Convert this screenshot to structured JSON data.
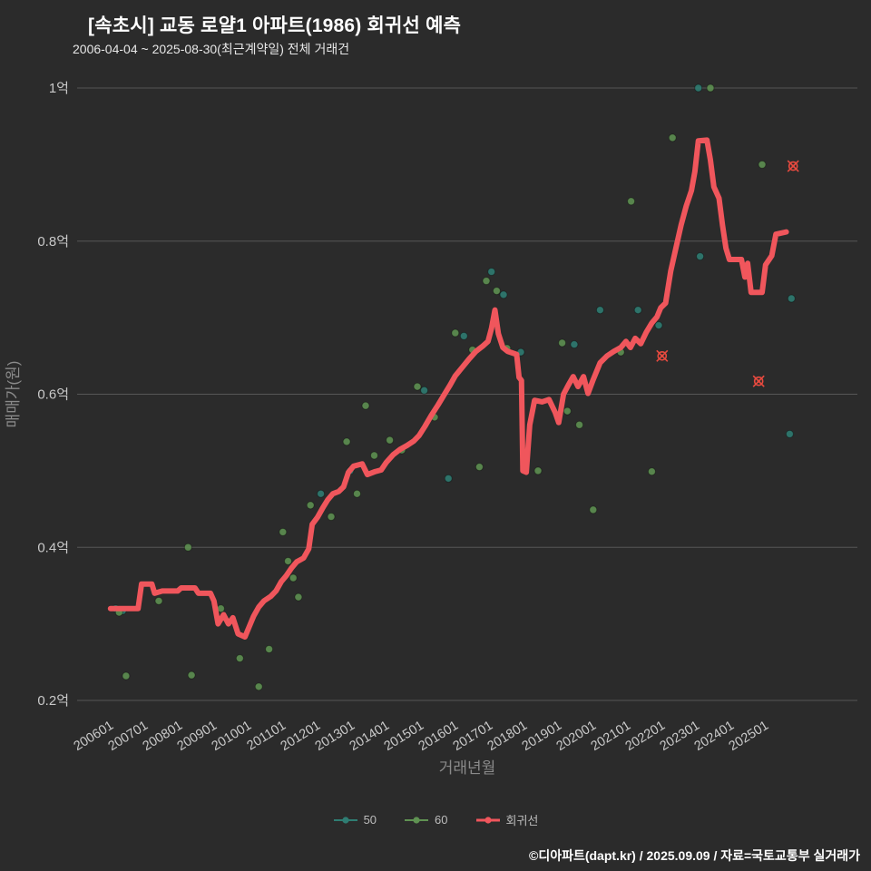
{
  "page": {
    "title": "[속초시] 교동 로얄1 아파트(1986) 회귀선 예측",
    "subtitle": "2006-04-04 ~ 2025-08-30(최근계약일) 전체 거래건",
    "footer": "©디아파트(dapt.kr) / 2025.09.09 / 자료=국토교통부 실거래가"
  },
  "colors": {
    "background": "#2b2b2b",
    "grid": "#565656",
    "tick_text": "#c9c9c9",
    "axis_title_text": "#8a8a8a",
    "series_50": "#2f7d73",
    "series_60": "#5f9252",
    "regression": "#f0565c",
    "outlier": "#e84a3f"
  },
  "legend": {
    "items": [
      {
        "label": "50",
        "color": "#2f7d73",
        "type": "scatter"
      },
      {
        "label": "60",
        "color": "#5f9252",
        "type": "scatter"
      },
      {
        "label": "회귀선",
        "color": "#f0565c",
        "type": "line"
      }
    ]
  },
  "chart_data": {
    "type": "scatter",
    "title": "[속초시] 교동 로얄1 아파트(1986) 회귀선 예측",
    "subtitle": "2006-04-04 ~ 2025-08-30(최근계약일) 전체 거래건",
    "xlabel": "거래년월",
    "ylabel": "매매가(원)",
    "unit": "억원",
    "grid": true,
    "legend_position": "bottom-center",
    "xlim": [
      2005.6,
      2026.4
    ],
    "ylim": [
      0.18,
      1.05
    ],
    "x_ticks": [
      "200601",
      "200701",
      "200801",
      "200901",
      "201001",
      "201101",
      "201201",
      "201301",
      "201401",
      "201501",
      "201601",
      "201701",
      "201801",
      "201901",
      "202001",
      "202101",
      "202201",
      "202301",
      "202401",
      "202501"
    ],
    "y_ticks": {
      "values": [
        0.2,
        0.4,
        0.6,
        0.8,
        1.0
      ],
      "labels": [
        "0.2억",
        "0.4억",
        "0.6억",
        "0.8억",
        "1억"
      ]
    },
    "series": [
      {
        "name": "50",
        "type": "scatter",
        "color": "#2f7d73",
        "points": [
          [
            2006.25,
            0.32
          ],
          [
            2006.45,
            0.317
          ],
          [
            2012.2,
            0.47
          ],
          [
            2013.05,
            0.5
          ],
          [
            2015.2,
            0.605
          ],
          [
            2015.9,
            0.49
          ],
          [
            2016.35,
            0.676
          ],
          [
            2017.15,
            0.76
          ],
          [
            2017.5,
            0.73
          ],
          [
            2018.0,
            0.655
          ],
          [
            2019.55,
            0.665
          ],
          [
            2020.3,
            0.71
          ],
          [
            2021.4,
            0.71
          ],
          [
            2022.0,
            0.69
          ],
          [
            2023.15,
            1.0
          ],
          [
            2023.2,
            0.78
          ],
          [
            2025.8,
            0.548
          ],
          [
            2025.85,
            0.725
          ]
        ]
      },
      {
        "name": "60",
        "type": "scatter",
        "color": "#5f9252",
        "points": [
          [
            2006.35,
            0.315
          ],
          [
            2006.55,
            0.232
          ],
          [
            2007.5,
            0.33
          ],
          [
            2008.35,
            0.4
          ],
          [
            2008.45,
            0.233
          ],
          [
            2009.3,
            0.32
          ],
          [
            2009.85,
            0.255
          ],
          [
            2010.4,
            0.218
          ],
          [
            2010.7,
            0.267
          ],
          [
            2011.1,
            0.42
          ],
          [
            2011.25,
            0.382
          ],
          [
            2011.4,
            0.36
          ],
          [
            2011.55,
            0.335
          ],
          [
            2011.9,
            0.455
          ],
          [
            2012.5,
            0.44
          ],
          [
            2012.95,
            0.538
          ],
          [
            2013.25,
            0.47
          ],
          [
            2013.5,
            0.585
          ],
          [
            2013.75,
            0.52
          ],
          [
            2014.2,
            0.54
          ],
          [
            2014.55,
            0.527
          ],
          [
            2015.0,
            0.61
          ],
          [
            2015.5,
            0.57
          ],
          [
            2016.1,
            0.68
          ],
          [
            2016.6,
            0.658
          ],
          [
            2016.8,
            0.505
          ],
          [
            2017.0,
            0.748
          ],
          [
            2017.3,
            0.735
          ],
          [
            2017.6,
            0.66
          ],
          [
            2018.5,
            0.5
          ],
          [
            2019.2,
            0.667
          ],
          [
            2019.35,
            0.578
          ],
          [
            2019.7,
            0.56
          ],
          [
            2020.1,
            0.449
          ],
          [
            2020.9,
            0.655
          ],
          [
            2021.2,
            0.852
          ],
          [
            2021.8,
            0.499
          ],
          [
            2022.4,
            0.935
          ],
          [
            2023.5,
            1.0
          ],
          [
            2025.0,
            0.9
          ]
        ]
      },
      {
        "name": "회귀선",
        "type": "line",
        "color": "#f0565c",
        "width": 6,
        "points": [
          [
            2006.1,
            0.32
          ],
          [
            2006.9,
            0.32
          ],
          [
            2007.0,
            0.352
          ],
          [
            2007.3,
            0.352
          ],
          [
            2007.38,
            0.34
          ],
          [
            2007.6,
            0.343
          ],
          [
            2008.05,
            0.343
          ],
          [
            2008.15,
            0.347
          ],
          [
            2008.55,
            0.347
          ],
          [
            2008.65,
            0.34
          ],
          [
            2009.0,
            0.34
          ],
          [
            2009.1,
            0.33
          ],
          [
            2009.22,
            0.3
          ],
          [
            2009.38,
            0.312
          ],
          [
            2009.52,
            0.3
          ],
          [
            2009.65,
            0.308
          ],
          [
            2009.8,
            0.287
          ],
          [
            2010.0,
            0.283
          ],
          [
            2010.12,
            0.296
          ],
          [
            2010.25,
            0.31
          ],
          [
            2010.4,
            0.322
          ],
          [
            2010.55,
            0.33
          ],
          [
            2010.75,
            0.336
          ],
          [
            2010.9,
            0.343
          ],
          [
            2011.05,
            0.355
          ],
          [
            2011.2,
            0.363
          ],
          [
            2011.35,
            0.373
          ],
          [
            2011.5,
            0.381
          ],
          [
            2011.7,
            0.386
          ],
          [
            2011.85,
            0.398
          ],
          [
            2011.95,
            0.43
          ],
          [
            2012.1,
            0.439
          ],
          [
            2012.25,
            0.451
          ],
          [
            2012.4,
            0.462
          ],
          [
            2012.55,
            0.47
          ],
          [
            2012.72,
            0.473
          ],
          [
            2012.86,
            0.479
          ],
          [
            2013.0,
            0.498
          ],
          [
            2013.15,
            0.506
          ],
          [
            2013.4,
            0.509
          ],
          [
            2013.55,
            0.495
          ],
          [
            2013.78,
            0.499
          ],
          [
            2013.95,
            0.501
          ],
          [
            2014.1,
            0.511
          ],
          [
            2014.3,
            0.521
          ],
          [
            2014.5,
            0.528
          ],
          [
            2014.7,
            0.533
          ],
          [
            2014.9,
            0.539
          ],
          [
            2015.05,
            0.546
          ],
          [
            2015.22,
            0.558
          ],
          [
            2015.4,
            0.572
          ],
          [
            2015.6,
            0.586
          ],
          [
            2015.8,
            0.601
          ],
          [
            2015.95,
            0.612
          ],
          [
            2016.1,
            0.624
          ],
          [
            2016.3,
            0.635
          ],
          [
            2016.5,
            0.646
          ],
          [
            2016.7,
            0.656
          ],
          [
            2016.9,
            0.663
          ],
          [
            2017.05,
            0.669
          ],
          [
            2017.15,
            0.686
          ],
          [
            2017.25,
            0.71
          ],
          [
            2017.35,
            0.679
          ],
          [
            2017.48,
            0.661
          ],
          [
            2017.62,
            0.656
          ],
          [
            2017.88,
            0.652
          ],
          [
            2017.95,
            0.622
          ],
          [
            2018.02,
            0.618
          ],
          [
            2018.06,
            0.5
          ],
          [
            2018.16,
            0.498
          ],
          [
            2018.26,
            0.56
          ],
          [
            2018.4,
            0.592
          ],
          [
            2018.62,
            0.59
          ],
          [
            2018.82,
            0.593
          ],
          [
            2019.0,
            0.576
          ],
          [
            2019.1,
            0.563
          ],
          [
            2019.24,
            0.6
          ],
          [
            2019.38,
            0.612
          ],
          [
            2019.52,
            0.623
          ],
          [
            2019.66,
            0.61
          ],
          [
            2019.82,
            0.623
          ],
          [
            2019.95,
            0.601
          ],
          [
            2020.1,
            0.619
          ],
          [
            2020.3,
            0.641
          ],
          [
            2020.5,
            0.65
          ],
          [
            2020.7,
            0.656
          ],
          [
            2020.9,
            0.661
          ],
          [
            2021.05,
            0.669
          ],
          [
            2021.18,
            0.661
          ],
          [
            2021.32,
            0.673
          ],
          [
            2021.48,
            0.666
          ],
          [
            2021.64,
            0.681
          ],
          [
            2021.8,
            0.693
          ],
          [
            2021.95,
            0.701
          ],
          [
            2022.06,
            0.713
          ],
          [
            2022.2,
            0.719
          ],
          [
            2022.35,
            0.761
          ],
          [
            2022.5,
            0.791
          ],
          [
            2022.65,
            0.821
          ],
          [
            2022.8,
            0.846
          ],
          [
            2022.95,
            0.866
          ],
          [
            2023.05,
            0.891
          ],
          [
            2023.15,
            0.931
          ],
          [
            2023.4,
            0.932
          ],
          [
            2023.5,
            0.906
          ],
          [
            2023.6,
            0.871
          ],
          [
            2023.75,
            0.856
          ],
          [
            2023.85,
            0.821
          ],
          [
            2023.95,
            0.791
          ],
          [
            2024.05,
            0.776
          ],
          [
            2024.4,
            0.776
          ],
          [
            2024.5,
            0.753
          ],
          [
            2024.58,
            0.771
          ],
          [
            2024.68,
            0.733
          ],
          [
            2025.0,
            0.733
          ],
          [
            2025.1,
            0.769
          ],
          [
            2025.28,
            0.781
          ],
          [
            2025.4,
            0.809
          ],
          [
            2025.7,
            0.812
          ]
        ]
      }
    ],
    "outlier_markers": {
      "symbol": "circle-x",
      "color": "#e84a3f",
      "points": [
        [
          2022.1,
          0.65
        ],
        [
          2024.9,
          0.617
        ],
        [
          2025.9,
          0.898
        ]
      ]
    }
  }
}
